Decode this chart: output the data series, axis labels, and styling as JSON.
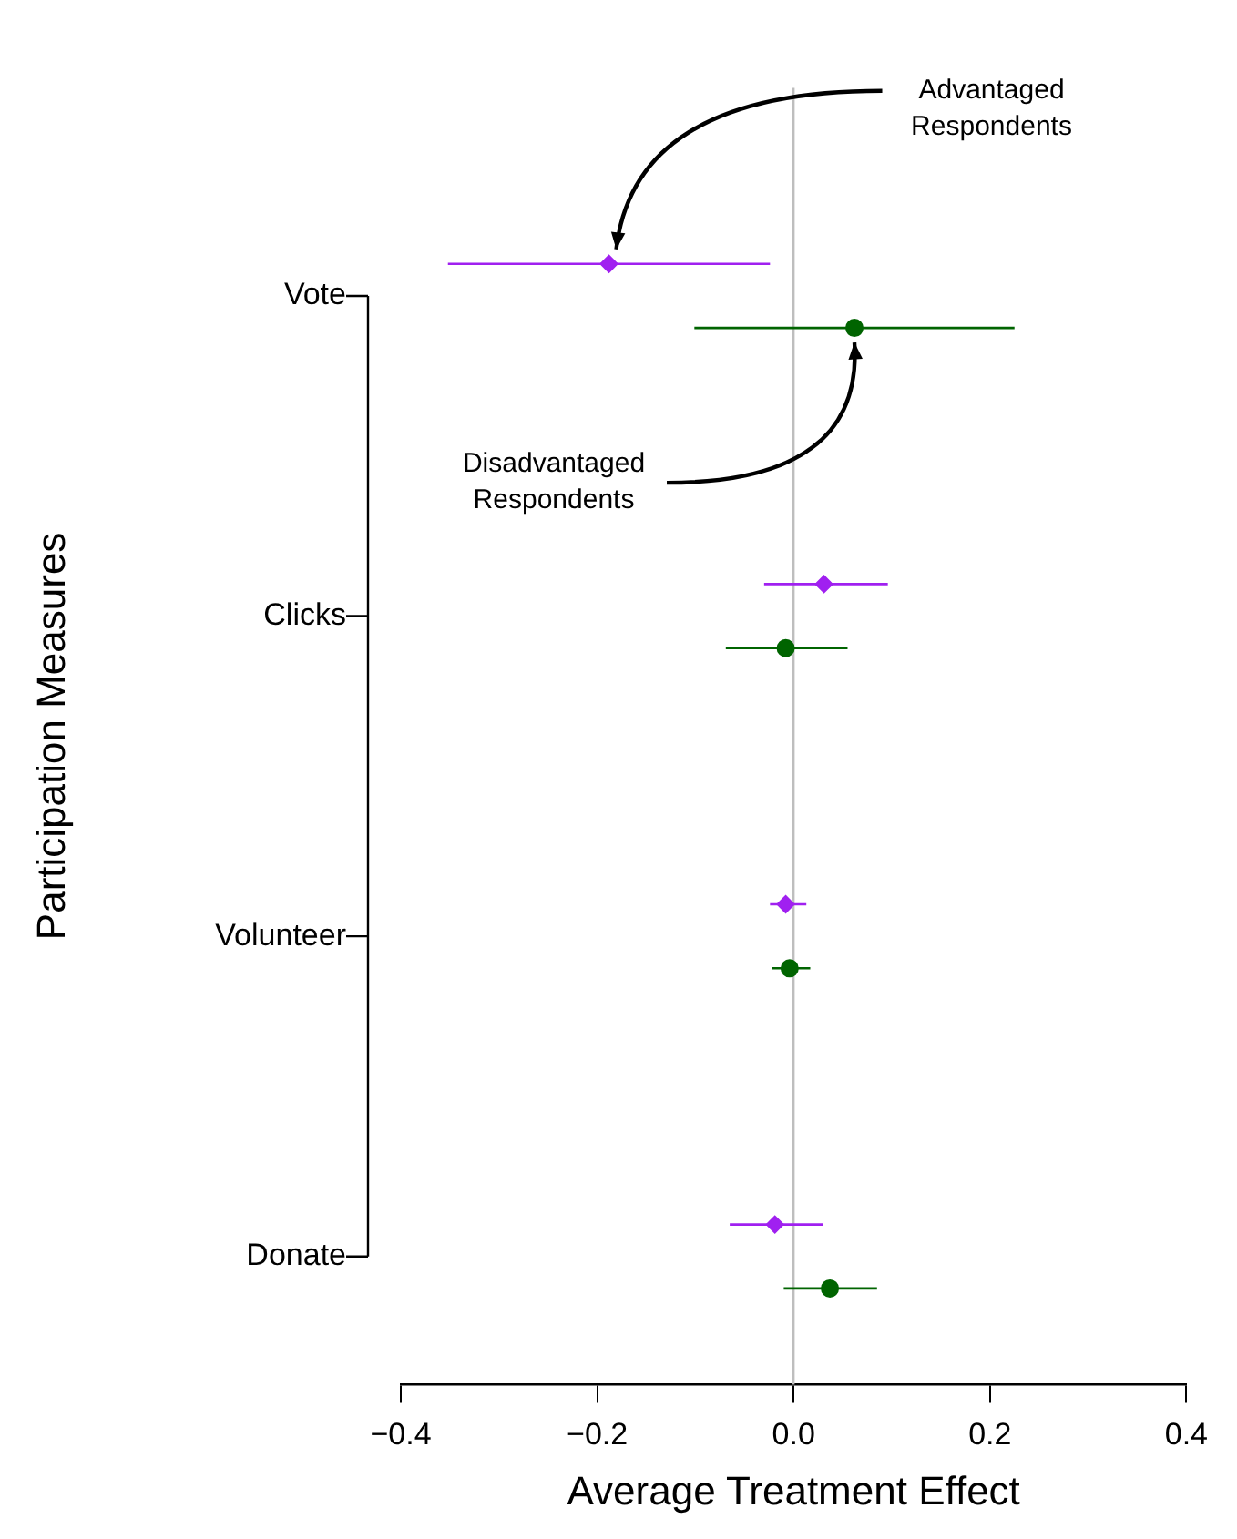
{
  "chart_data": {
    "type": "scatter",
    "orientation": "horizontal",
    "categories": [
      "Vote",
      "Clicks",
      "Volunteer",
      "Donate"
    ],
    "xlabel": "Average Treatment Effect",
    "ylabel": "Participation Measures",
    "xlim": [
      -0.4,
      0.4
    ],
    "xticks": [
      {
        "value": -0.4,
        "label": "−0.4"
      },
      {
        "value": -0.2,
        "label": "−0.2"
      },
      {
        "value": 0,
        "label": "0.0"
      },
      {
        "value": 0.2,
        "label": "0.2"
      },
      {
        "value": 0.4,
        "label": "0.4"
      }
    ],
    "grid": false,
    "ref_lines": [
      {
        "axis": "x",
        "value": 0,
        "color": "#bebebe"
      }
    ],
    "series": [
      {
        "name": "Advantaged Respondents",
        "color": "#a020f0",
        "marker": "diamond",
        "values": [
          -0.188,
          0.031,
          -0.008,
          -0.019
        ],
        "errors": [
          [
            -0.352,
            -0.024
          ],
          [
            -0.03,
            0.096
          ],
          [
            -0.024,
            0.013
          ],
          [
            -0.065,
            0.03
          ]
        ]
      },
      {
        "name": "Disadvantaged Respondents",
        "color": "#006400",
        "marker": "circle",
        "values": [
          0.062,
          -0.008,
          -0.004,
          0.037
        ],
        "errors": [
          [
            -0.101,
            0.225
          ],
          [
            -0.069,
            0.055
          ],
          [
            -0.022,
            0.017
          ],
          [
            -0.01,
            0.085
          ]
        ]
      }
    ]
  }
}
